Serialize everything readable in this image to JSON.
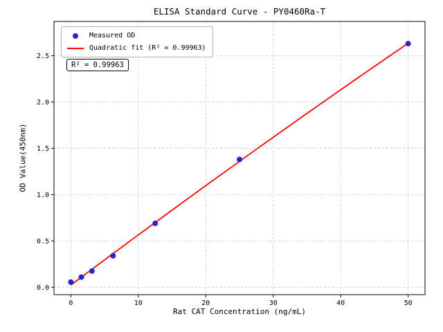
{
  "chart_data": {
    "type": "scatter",
    "title": "ELISA Standard Curve - PY0460Ra-T",
    "xlabel": "Rat CAT Concentration (ng/mL)",
    "ylabel": "OD Value(450nm)",
    "series_name": "Measured OD",
    "x": [
      0,
      1.5625,
      3.125,
      6.25,
      12.5,
      25,
      50
    ],
    "y": [
      0.055,
      0.11,
      0.175,
      0.34,
      0.69,
      1.38,
      2.63
    ],
    "fit": {
      "type": "quadratic",
      "label": "Quadratic fit (R² = 0.99963)",
      "r_squared": 0.99963
    },
    "annotation": "R² = 0.99963",
    "xlim": [
      -2.5,
      52.5
    ],
    "ylim": [
      -0.08,
      2.87
    ],
    "xticks": [
      0,
      10,
      20,
      30,
      40,
      50
    ],
    "yticks": [
      "0.0",
      "0.5",
      "1.0",
      "1.5",
      "2.0",
      "2.5"
    ],
    "grid": true,
    "grid_style": "dashed",
    "legend_position": "upper left",
    "colors": {
      "points": "#2525cd",
      "fit_line": "#ff0000",
      "grid": "#c8c8c8",
      "spine": "#000000"
    }
  }
}
